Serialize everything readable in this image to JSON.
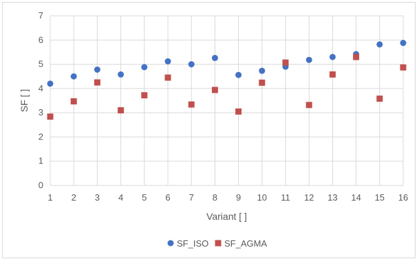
{
  "chart_data": {
    "type": "scatter",
    "title": "",
    "xlabel": "Variant [ ]",
    "ylabel": "SF [ ]",
    "x": [
      1,
      2,
      3,
      4,
      5,
      6,
      7,
      8,
      9,
      10,
      11,
      12,
      13,
      14,
      15,
      16
    ],
    "xlim": [
      1,
      16
    ],
    "ylim": [
      0,
      7
    ],
    "x_ticks": [
      "1",
      "2",
      "3",
      "4",
      "5",
      "6",
      "7",
      "8",
      "9",
      "10",
      "11",
      "12",
      "13",
      "14",
      "15",
      "16"
    ],
    "y_ticks": [
      "0",
      "1",
      "2",
      "3",
      "4",
      "5",
      "6",
      "7"
    ],
    "grid": "vertical and horizontal",
    "legend_position": "bottom",
    "series": [
      {
        "name": "SF_ISO",
        "marker": "circle",
        "color": "#4472C4",
        "values": [
          4.2,
          4.5,
          4.78,
          4.58,
          4.88,
          5.12,
          5.0,
          5.26,
          4.56,
          4.73,
          4.9,
          5.18,
          5.3,
          5.42,
          5.82,
          5.88
        ]
      },
      {
        "name": "SF_AGMA",
        "marker": "square",
        "color": "#C0504D",
        "values": [
          2.84,
          3.47,
          4.25,
          3.1,
          3.72,
          4.45,
          3.34,
          3.94,
          3.05,
          4.24,
          5.07,
          3.32,
          4.58,
          5.3,
          3.58,
          4.87
        ]
      }
    ]
  }
}
